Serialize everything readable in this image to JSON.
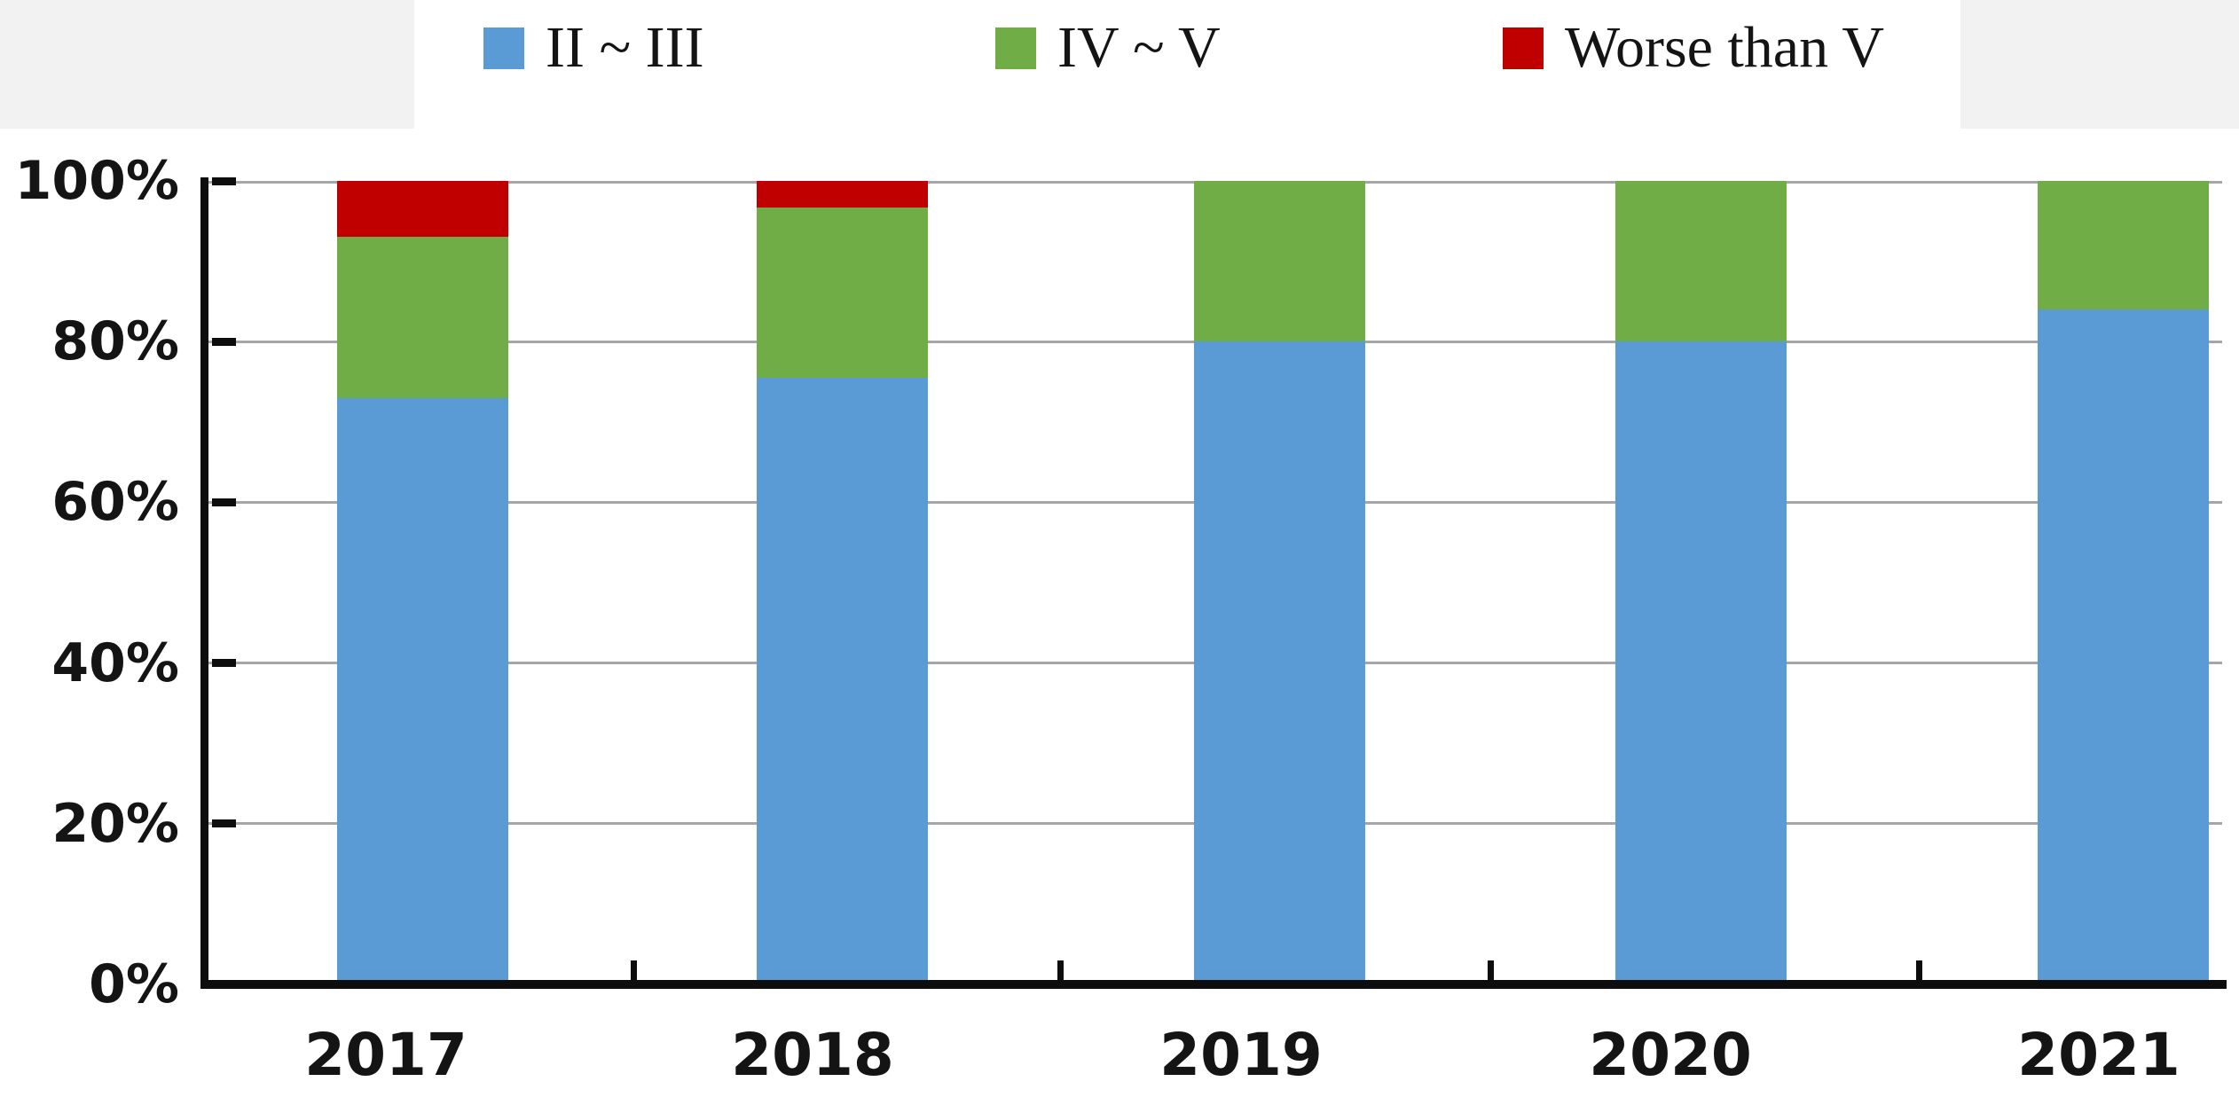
{
  "chart_data": {
    "type": "bar",
    "stacked": true,
    "title": "",
    "xlabel": "",
    "ylabel": "",
    "unit": "%",
    "categories": [
      "2017",
      "2018",
      "2019",
      "2020",
      "2021"
    ],
    "series": [
      {
        "name": "II ~ III",
        "color": "#5b9bd5",
        "values": [
          73.0,
          75.5,
          80.0,
          80.0,
          84.0
        ]
      },
      {
        "name": "IV ~ V",
        "color": "#70ad47",
        "values": [
          20.0,
          21.2,
          20.0,
          20.0,
          16.0
        ]
      },
      {
        "name": "Worse than V",
        "color": "#c00000",
        "values": [
          7.0,
          3.3,
          0.0,
          0.0,
          0.0
        ]
      }
    ],
    "ylim": [
      0,
      100
    ],
    "ytick_labels": [
      "0%",
      "20%",
      "40%",
      "60%",
      "80%",
      "100%"
    ],
    "ytick_values": [
      0,
      20,
      40,
      60,
      80,
      100
    ],
    "grid": "horizontal-on",
    "legend_position": "top"
  },
  "colors": {
    "axis": "#0d0d0d",
    "gridline": "#a6a6a6",
    "top_strip_background": "#f2f2f2",
    "plot_background": "#ffffff",
    "text": "#141414"
  }
}
